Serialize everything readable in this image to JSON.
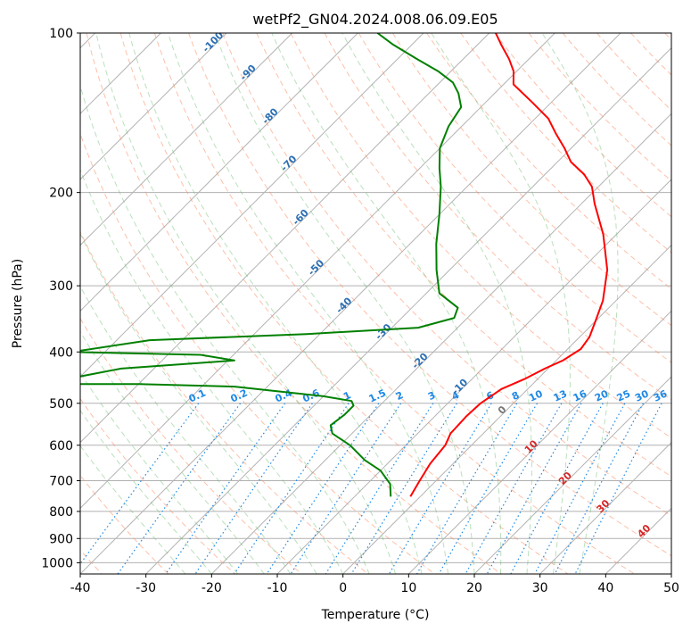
{
  "chart_data": {
    "type": "line",
    "subtype": "skew-T log-P diagram",
    "title": "wetPf2_GN04.2024.008.06.09.E05",
    "xlabel": "Temperature (°C)",
    "ylabel": "Pressure (hPa)",
    "xlim": [
      -40,
      50
    ],
    "ylim": [
      1050,
      100
    ],
    "y_scale": "log",
    "grid": true,
    "x_ticks": [
      -40,
      -30,
      -20,
      -10,
      0,
      10,
      20,
      30,
      40,
      50
    ],
    "y_ticks": [
      100,
      200,
      300,
      400,
      500,
      600,
      700,
      800,
      900,
      1000
    ],
    "series": [
      {
        "role": "temperature",
        "color": "#ff0000",
        "points": [
          [
            -1.5,
            750
          ],
          [
            -2.5,
            700
          ],
          [
            -3.5,
            650
          ],
          [
            -4.0,
            600
          ],
          [
            -5.0,
            570
          ],
          [
            -5.2,
            530
          ],
          [
            -5.0,
            500
          ],
          [
            -4.0,
            470
          ],
          [
            -2.0,
            450
          ],
          [
            -0.5,
            430
          ],
          [
            1.0,
            415
          ],
          [
            2.0,
            395
          ],
          [
            1.5,
            375
          ],
          [
            0.0,
            350
          ],
          [
            -2.0,
            320
          ],
          [
            -6.0,
            280
          ],
          [
            -12.0,
            240
          ],
          [
            -18.0,
            210
          ],
          [
            -21.0,
            195
          ],
          [
            -24.0,
            185
          ],
          [
            -28.0,
            175
          ],
          [
            -31.0,
            165
          ],
          [
            -34.5,
            155
          ],
          [
            -38.0,
            145
          ],
          [
            -43.0,
            135
          ],
          [
            -48.5,
            125
          ],
          [
            -50.5,
            118
          ],
          [
            -53.0,
            112
          ],
          [
            -56.5,
            105
          ],
          [
            -59.0,
            100
          ]
        ]
      },
      {
        "role": "dewpoint",
        "color": "#008000",
        "points": [
          [
            -4.5,
            750
          ],
          [
            -6.5,
            710
          ],
          [
            -10.0,
            670
          ],
          [
            -14.0,
            640
          ],
          [
            -18.5,
            600
          ],
          [
            -23.0,
            570
          ],
          [
            -24.5,
            550
          ],
          [
            -24.0,
            525
          ],
          [
            -24.0,
            505
          ],
          [
            -25.0,
            495
          ],
          [
            -30.0,
            485
          ],
          [
            -45.0,
            465
          ],
          [
            -60.0,
            460
          ],
          [
            -75.0,
            460
          ],
          [
            -65.0,
            430
          ],
          [
            -49.0,
            415
          ],
          [
            -55.0,
            405
          ],
          [
            -75.0,
            400
          ],
          [
            -65.0,
            380
          ],
          [
            -42.0,
            370
          ],
          [
            -26.0,
            360
          ],
          [
            -22.0,
            345
          ],
          [
            -23.0,
            330
          ],
          [
            -28.0,
            310
          ],
          [
            -32.0,
            280
          ],
          [
            -36.0,
            250
          ],
          [
            -40.0,
            220
          ],
          [
            -44.0,
            195
          ],
          [
            -47.0,
            180
          ],
          [
            -50.0,
            165
          ],
          [
            -52.0,
            150
          ],
          [
            -53.0,
            138
          ],
          [
            -55.5,
            130
          ],
          [
            -58.0,
            124
          ],
          [
            -62.0,
            118
          ],
          [
            -67.0,
            112
          ],
          [
            -73.0,
            105
          ],
          [
            -77.0,
            100
          ]
        ]
      }
    ],
    "dry_adiabats": {
      "line_style": "dashed",
      "color": "#fc8d62"
    },
    "moist_adiabats": {
      "line_style": "dashed",
      "color": "#66bb6a"
    },
    "mixing_ratio_lines": {
      "line_style": "dotted",
      "color": "#1e88e5",
      "labels": [
        "0.1",
        "0.2",
        "0.4",
        "0.6",
        "1",
        "1.5",
        "2",
        "3",
        "4",
        "6",
        "8",
        "10",
        "13",
        "16",
        "20",
        "25",
        "30",
        "36"
      ]
    },
    "isotherm_labels_cold": [
      "-100",
      "-90",
      "-80",
      "-70",
      "-60",
      "-50",
      "-40",
      "-30",
      "-20",
      "-10"
    ],
    "isotherm_labels_warm": [
      "0",
      "10",
      "20",
      "30",
      "40"
    ]
  }
}
